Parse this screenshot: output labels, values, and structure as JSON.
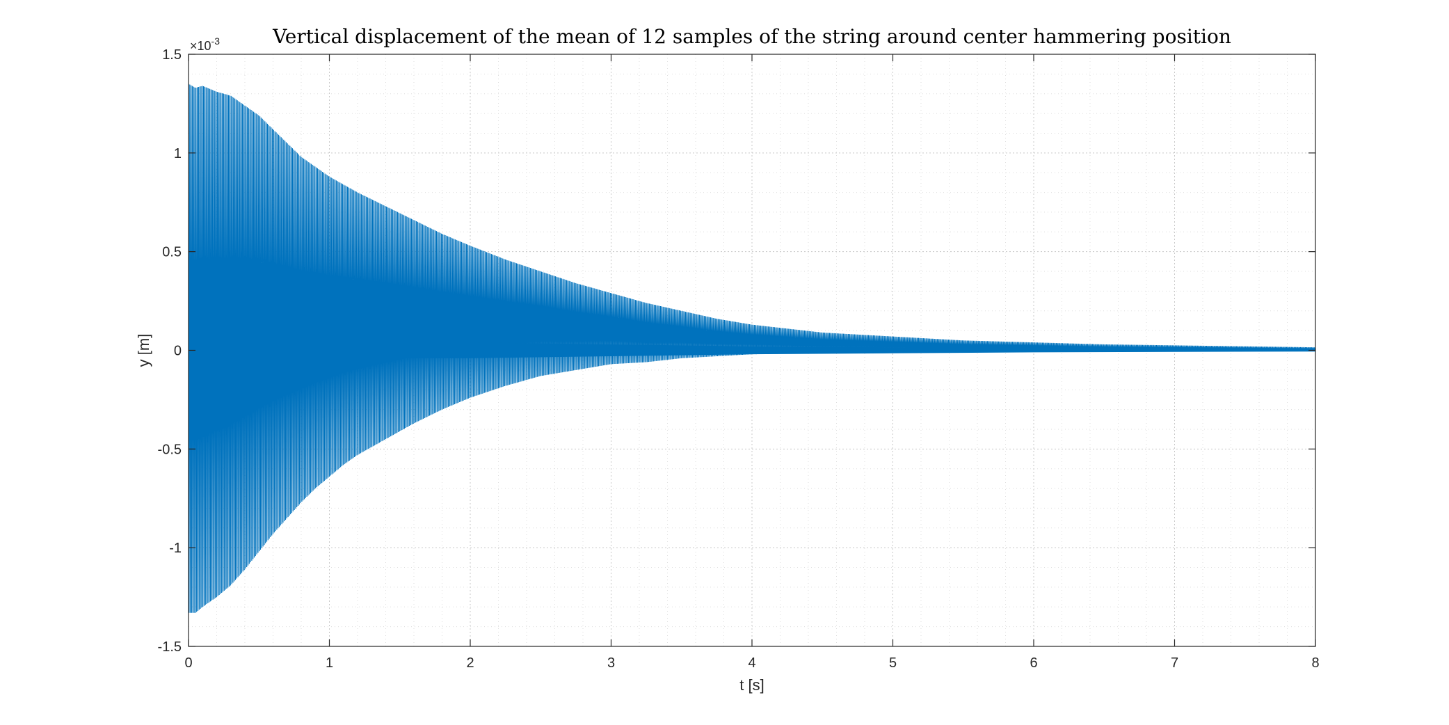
{
  "colors": {
    "series": "#0072BD",
    "axes": "#262626",
    "grid_major": "#c8c8c8",
    "grid_minor": "#dedede",
    "background": "#ffffff"
  },
  "chart_data": {
    "type": "line",
    "title": "Vertical displacement of the mean of 12 samples of the string around center hammering position",
    "xlabel": "t [s]",
    "ylabel": "y [m]",
    "xlim": [
      0,
      8
    ],
    "ylim": [
      -0.0015,
      0.0015
    ],
    "y_exponent_label": "×10",
    "y_exponent_power": "-3",
    "xticks": [
      "0",
      "1",
      "2",
      "3",
      "4",
      "5",
      "6",
      "7",
      "8"
    ],
    "yticks": [
      "-1.5",
      "-1",
      "-0.5",
      "0",
      "0.5",
      "1",
      "1.5"
    ],
    "grid": "on",
    "minor_grid": "on",
    "series": [
      {
        "envelope_upper": {
          "t": [
            0,
            0.05,
            0.1,
            0.2,
            0.3,
            0.4,
            0.5,
            0.6,
            0.7,
            0.8,
            0.9,
            1.0,
            1.1,
            1.2,
            1.4,
            1.6,
            1.8,
            2.0,
            2.25,
            2.5,
            2.75,
            3.0,
            3.25,
            3.5,
            3.75,
            4.0,
            4.25,
            4.5,
            4.75,
            5.0,
            5.5,
            6.0,
            6.5,
            7.0,
            7.5,
            8.0
          ],
          "y": [
            0.00135,
            0.00133,
            0.00134,
            0.00131,
            0.00129,
            0.00124,
            0.00119,
            0.00112,
            0.00105,
            0.00098,
            0.00093,
            0.00088,
            0.00084,
            0.0008,
            0.00073,
            0.00066,
            0.00059,
            0.00053,
            0.00046,
            0.0004,
            0.00034,
            0.00029,
            0.00024,
            0.0002,
            0.00016,
            0.00013,
            0.00011,
            9e-05,
            8e-05,
            7e-05,
            5e-05,
            4e-05,
            3e-05,
            2.5e-05,
            2e-05,
            1.5e-05
          ]
        },
        "envelope_lower": {
          "t": [
            0,
            0.05,
            0.1,
            0.2,
            0.3,
            0.4,
            0.5,
            0.6,
            0.7,
            0.8,
            0.9,
            1.0,
            1.1,
            1.2,
            1.4,
            1.6,
            1.8,
            2.0,
            2.25,
            2.5,
            2.75,
            3.0,
            3.25,
            3.5,
            3.75,
            4.0,
            4.25,
            4.5,
            4.75,
            5.0,
            5.5,
            6.0,
            6.5,
            7.0,
            7.5,
            8.0
          ],
          "y": [
            -0.00133,
            -0.00133,
            -0.0013,
            -0.00125,
            -0.00119,
            -0.00111,
            -0.00102,
            -0.00093,
            -0.00085,
            -0.00077,
            -0.0007,
            -0.00064,
            -0.00058,
            -0.00053,
            -0.00045,
            -0.00037,
            -0.0003,
            -0.00024,
            -0.00018,
            -0.00013,
            -0.0001,
            -7e-05,
            -6e-05,
            -4e-05,
            -3e-05,
            -2e-05,
            -1.7e-05,
            -1.4e-05,
            -1.2e-05,
            -1e-05,
            -8e-06,
            -7e-06,
            -6e-06,
            -5e-06,
            -4e-06,
            -4e-06
          ]
        },
        "dense_core": {
          "t": [
            0,
            1,
            2,
            3,
            4,
            5,
            6,
            7,
            8
          ],
          "y_upper": [
            4e-05,
            4e-05,
            4e-05,
            3e-05,
            2e-05,
            1.5e-05,
            1e-05,
            8e-06,
            6e-06
          ],
          "y_lower": [
            -4e-05,
            -4e-05,
            -4e-05,
            -3e-05,
            -2e-05,
            -1.5e-05,
            -1e-05,
            -8e-06,
            -6e-06
          ]
        }
      }
    ]
  }
}
